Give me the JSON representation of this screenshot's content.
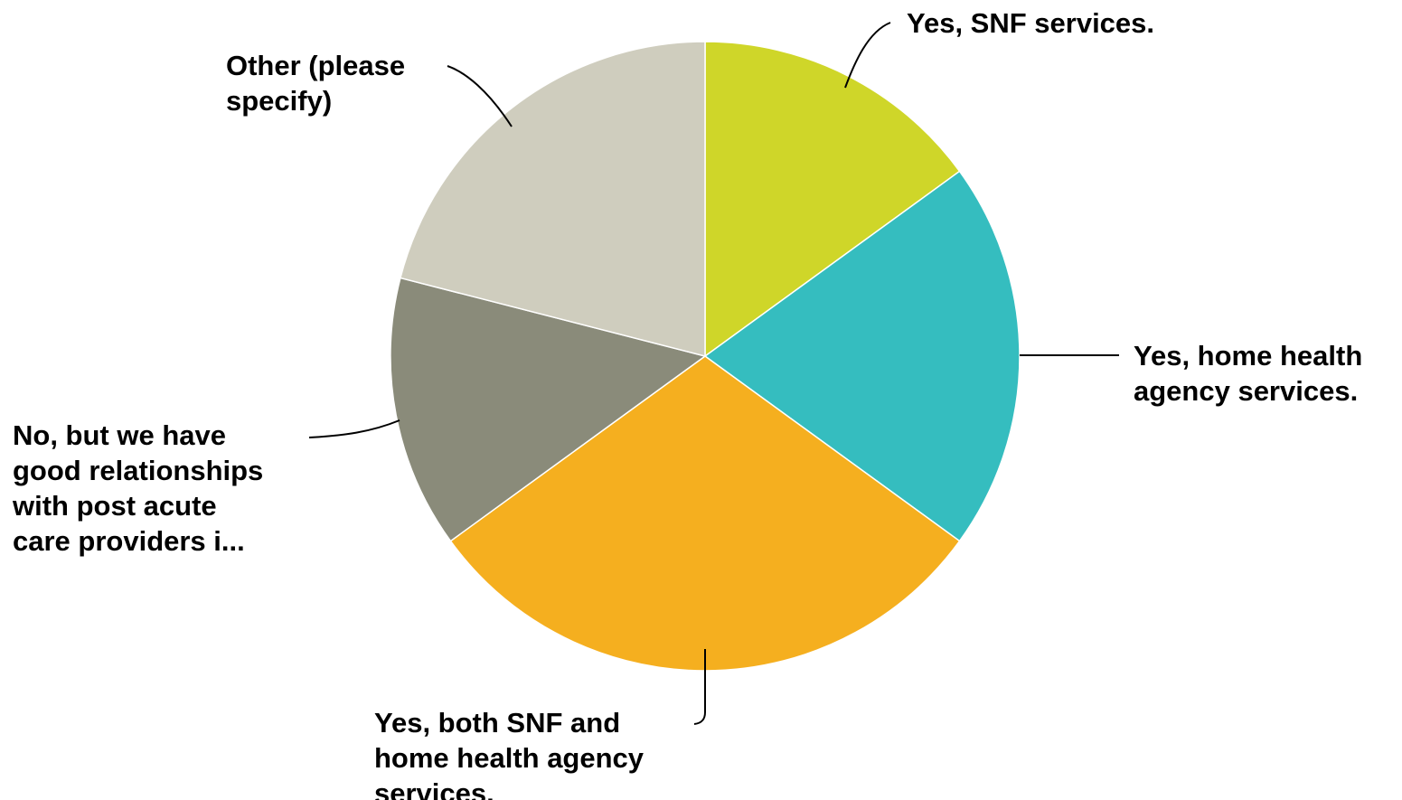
{
  "chart_data": {
    "type": "pie",
    "title": "",
    "slices": [
      {
        "label": "Yes, SNF services.",
        "value": 15,
        "color": "#cfd629"
      },
      {
        "label": "Yes, home health agency services.",
        "value": 20,
        "color": "#35bdbf"
      },
      {
        "label": "Yes, both SNF and home health agency services.",
        "value": 30,
        "color": "#f5af1f"
      },
      {
        "label": "No, but we have good relationships with post acute care providers i...",
        "value": 14,
        "color": "#8a8b7a"
      },
      {
        "label": "Other (please specify)",
        "value": 21,
        "color": "#cfcdbe"
      }
    ],
    "start_angle_deg": 0,
    "direction": "clockwise",
    "legend": "none"
  }
}
